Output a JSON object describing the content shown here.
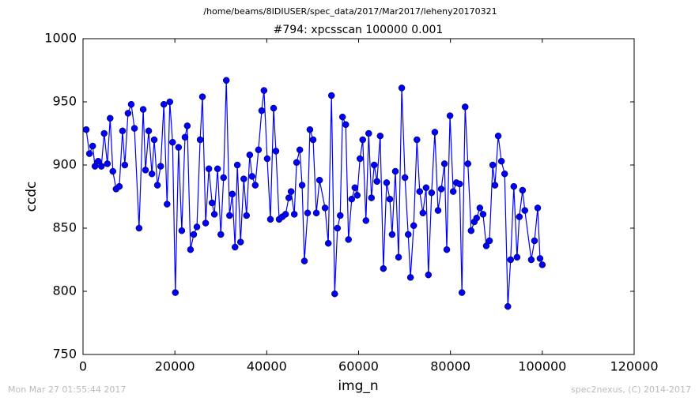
{
  "chart_data": {
    "type": "line",
    "suptitle": "/home/beams/8IDIUSER/spec_data/2017/Mar2017/leheny20170321",
    "title": "#794: xpcsscan 100000 0.001",
    "xlabel": "img_n",
    "ylabel": "ccdc",
    "footer_left": "Mon Mar 27 01:55:44 2017",
    "footer_right": "spec2nexus, (C) 2014-2017",
    "xlim": [
      0,
      120000
    ],
    "xticks": [
      0,
      20000,
      40000,
      60000,
      80000,
      100000,
      120000
    ],
    "ylim": [
      750,
      1000
    ],
    "yticks": [
      750,
      800,
      850,
      900,
      950,
      1000
    ],
    "grid": false,
    "series": [
      {
        "name": "ccdc",
        "color": "#0000ff",
        "x": [
          700,
          1400,
          2100,
          2600,
          3300,
          4000,
          4600,
          5300,
          5900,
          6500,
          7200,
          7900,
          8600,
          9100,
          9800,
          10500,
          11200,
          12200,
          13100,
          13600,
          14300,
          15000,
          15500,
          16200,
          16900,
          17600,
          18300,
          18900,
          19500,
          20100,
          20800,
          21500,
          22200,
          22700,
          23400,
          24100,
          24800,
          25500,
          26000,
          26700,
          27400,
          28100,
          28600,
          29300,
          30000,
          30600,
          31200,
          31900,
          32500,
          33100,
          33600,
          34300,
          35000,
          35600,
          36300,
          36800,
          37500,
          38200,
          38900,
          39400,
          40100,
          40800,
          41500,
          42000,
          42700,
          43400,
          44100,
          44800,
          45300,
          46000,
          46500,
          47200,
          47700,
          48200,
          48900,
          49400,
          50100,
          50800,
          51500,
          52700,
          53400,
          54100,
          54800,
          55400,
          56000,
          56500,
          57200,
          57800,
          58500,
          59200,
          59700,
          60300,
          60900,
          61600,
          62200,
          62800,
          63400,
          64000,
          64700,
          65400,
          66100,
          66800,
          67300,
          68000,
          68700,
          69400,
          70100,
          70800,
          71300,
          72000,
          72700,
          73300,
          74000,
          74700,
          75200,
          75900,
          76600,
          77300,
          78000,
          78700,
          79200,
          79900,
          80600,
          81300,
          82000,
          82500,
          83200,
          83800,
          84500,
          85200,
          85700,
          86400,
          87100,
          87800,
          88500,
          89200,
          89700,
          90400,
          91100,
          91800,
          92500,
          93100,
          93800,
          94500,
          95000,
          95700,
          96200,
          97600,
          98300,
          99000,
          99500,
          100000
        ],
        "values": [
          928,
          909,
          915,
          899,
          903,
          899,
          925,
          901,
          937,
          895,
          881,
          883,
          927,
          900,
          941,
          948,
          929,
          850,
          944,
          896,
          927,
          893,
          920,
          884,
          899,
          948,
          869,
          950,
          918,
          799,
          914,
          848,
          922,
          931,
          833,
          845,
          851,
          920,
          954,
          854,
          897,
          870,
          861,
          897,
          845,
          890,
          967,
          860,
          877,
          835,
          900,
          839,
          889,
          860,
          908,
          891,
          884,
          912,
          943,
          959,
          905,
          857,
          945,
          911,
          857,
          859,
          861,
          874,
          879,
          861,
          902,
          912,
          884,
          824,
          862,
          928,
          920,
          862,
          888,
          866,
          838,
          955,
          798,
          850,
          860,
          938,
          932,
          841,
          873,
          882,
          876,
          905,
          920,
          856,
          925,
          874,
          900,
          887,
          923,
          818,
          886,
          873,
          845,
          895,
          827,
          961,
          890,
          845,
          811,
          852,
          920,
          879,
          862,
          882,
          813,
          878,
          926,
          864,
          881,
          901,
          833,
          939,
          879,
          886,
          885,
          799,
          946,
          901,
          848,
          855,
          858,
          866,
          861,
          836,
          840,
          900,
          884,
          923,
          903,
          893,
          788,
          825,
          883,
          827,
          859,
          880,
          864,
          825,
          840,
          866,
          826,
          821
        ]
      }
    ]
  }
}
